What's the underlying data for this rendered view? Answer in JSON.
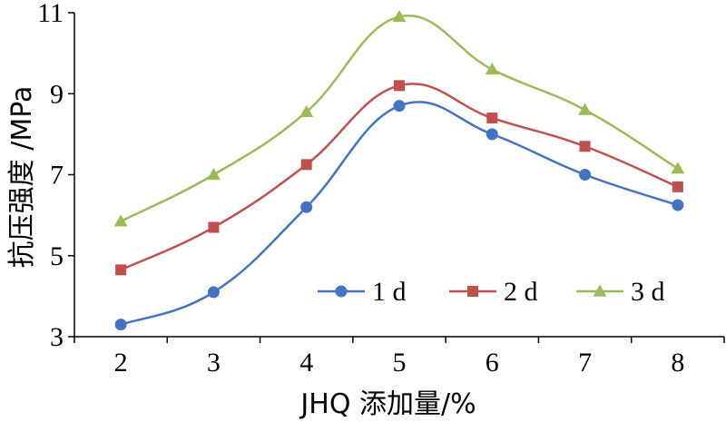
{
  "chart_data": {
    "type": "line",
    "title": "",
    "xlabel": "JHQ 添加量/%",
    "ylabel": "抗压强度 /MPa",
    "x": [
      2,
      3,
      4,
      5,
      6,
      7,
      8
    ],
    "x_tick_labels": [
      "2",
      "3",
      "4",
      "5",
      "6",
      "7",
      "8"
    ],
    "ylim": [
      3,
      11
    ],
    "y_ticks": [
      3,
      5,
      7,
      9,
      11
    ],
    "y_tick_labels": [
      "3",
      "5",
      "7",
      "9",
      "11"
    ],
    "grid": false,
    "legend_position": "bottom-right",
    "series": [
      {
        "name": "1 d",
        "color": "#4472C4",
        "marker": "circle",
        "values": [
          3.3,
          4.1,
          6.2,
          8.7,
          8.0,
          7.0,
          6.25
        ]
      },
      {
        "name": "2 d",
        "color": "#C0504D",
        "marker": "square",
        "values": [
          4.65,
          5.7,
          7.25,
          9.2,
          8.4,
          7.7,
          6.7
        ]
      },
      {
        "name": "3 d",
        "color": "#9BBB59",
        "marker": "triangle",
        "values": [
          5.85,
          7.0,
          8.55,
          10.9,
          9.6,
          8.6,
          7.15
        ]
      }
    ]
  }
}
